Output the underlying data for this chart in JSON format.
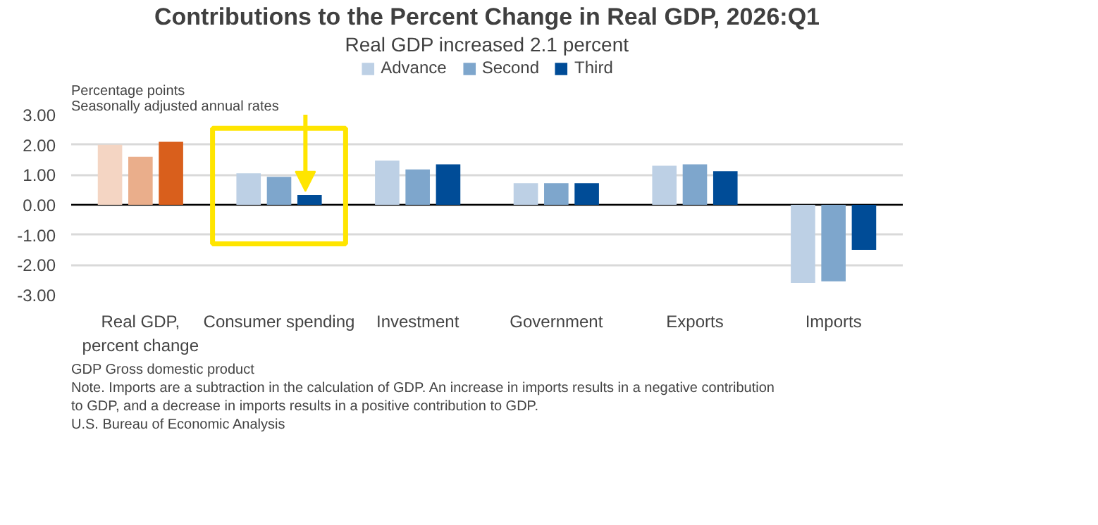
{
  "chart_data": {
    "type": "bar",
    "title": "Contributions to the Percent Change in Real GDP, 2026:Q1",
    "subtitle": "Real GDP increased 2.1 percent",
    "ylabel": "Percentage points\nSeasonally adjusted annual rates",
    "categories": [
      "Real GDP,\npercent change",
      "Consumer spending",
      "Investment",
      "Government",
      "Exports",
      "Imports"
    ],
    "series": [
      {
        "name": "Advance",
        "color": "#bdd0e5",
        "colors": [
          "#f4d5c3",
          "#bdd0e5",
          "#bdd0e5",
          "#bdd0e5",
          "#bdd0e5",
          "#bdd0e5"
        ],
        "values": [
          2.0,
          1.05,
          1.47,
          0.72,
          1.3,
          -2.6
        ]
      },
      {
        "name": "Second",
        "color": "#7ea6cc",
        "colors": [
          "#eaae8b",
          "#7ea6cc",
          "#7ea6cc",
          "#7ea6cc",
          "#7ea6cc",
          "#7ea6cc"
        ],
        "values": [
          1.6,
          0.93,
          1.18,
          0.72,
          1.35,
          -2.55
        ]
      },
      {
        "name": "Third",
        "color": "#004c97",
        "colors": [
          "#d95f1c",
          "#004c97",
          "#004c97",
          "#004c97",
          "#004c97",
          "#004c97"
        ],
        "values": [
          2.1,
          0.33,
          1.35,
          0.72,
          1.12,
          -1.5
        ]
      }
    ],
    "ylim": [
      -3,
      3
    ],
    "yticks": [
      {
        "value": -3,
        "label": "-3.00"
      },
      {
        "value": -2,
        "label": "-2.00"
      },
      {
        "value": -1,
        "label": "-1.00"
      },
      {
        "value": 0,
        "label": "0.00"
      },
      {
        "value": 1,
        "label": "1.00"
      },
      {
        "value": 2,
        "label": "2.00"
      },
      {
        "value": 3,
        "label": "3.00"
      }
    ],
    "grid": "y",
    "legend": "top",
    "annotations": [
      "GDP Gross domestic product",
      "Note. Imports are a subtraction in the calculation of GDP. An increase in imports results in a negative contribution to GDP, and a decrease in imports results in a positive contribution to GDP.",
      "U.S. Bureau of Economic Analysis"
    ]
  }
}
